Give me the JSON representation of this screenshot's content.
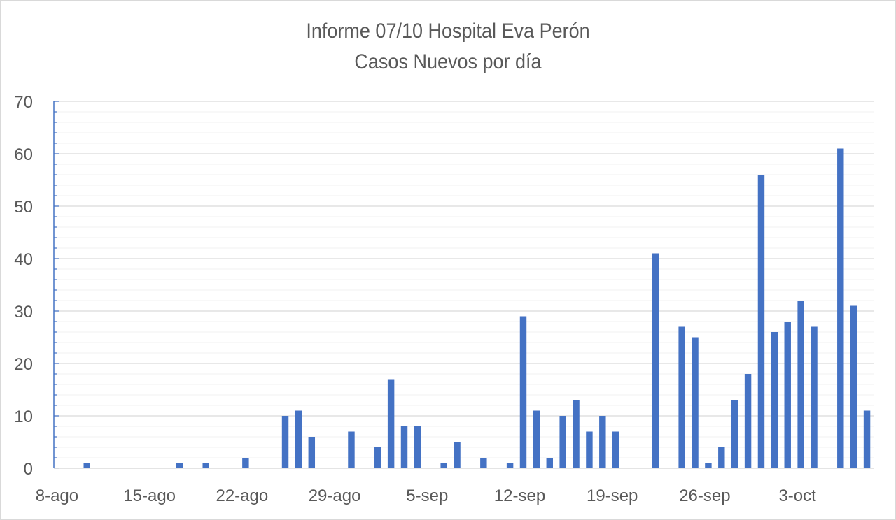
{
  "chart_data": {
    "type": "bar",
    "title": "Informe 07/10 Hospital Eva Perón",
    "subtitle": "Casos Nuevos por día",
    "xlabel": "",
    "ylabel": "",
    "ylim": [
      0,
      70
    ],
    "y_ticks": [
      "0",
      "10",
      "20",
      "30",
      "40",
      "50",
      "60",
      "70"
    ],
    "x_ticks": [
      "8-ago",
      "15-ago",
      "22-ago",
      "29-ago",
      "5-sep",
      "12-sep",
      "19-sep",
      "26-sep",
      "3-oct"
    ],
    "grid": true,
    "bar_color": "#4472c4",
    "x_start": "8-ago",
    "values": [
      0,
      0,
      1,
      0,
      0,
      0,
      0,
      0,
      0,
      1,
      0,
      1,
      0,
      0,
      2,
      0,
      0,
      10,
      11,
      6,
      0,
      0,
      7,
      0,
      4,
      17,
      8,
      8,
      0,
      1,
      5,
      0,
      2,
      0,
      1,
      29,
      11,
      2,
      10,
      13,
      7,
      10,
      7,
      0,
      0,
      41,
      0,
      27,
      25,
      1,
      4,
      13,
      18,
      56,
      26,
      28,
      32,
      27,
      0,
      61,
      31,
      11
    ]
  }
}
